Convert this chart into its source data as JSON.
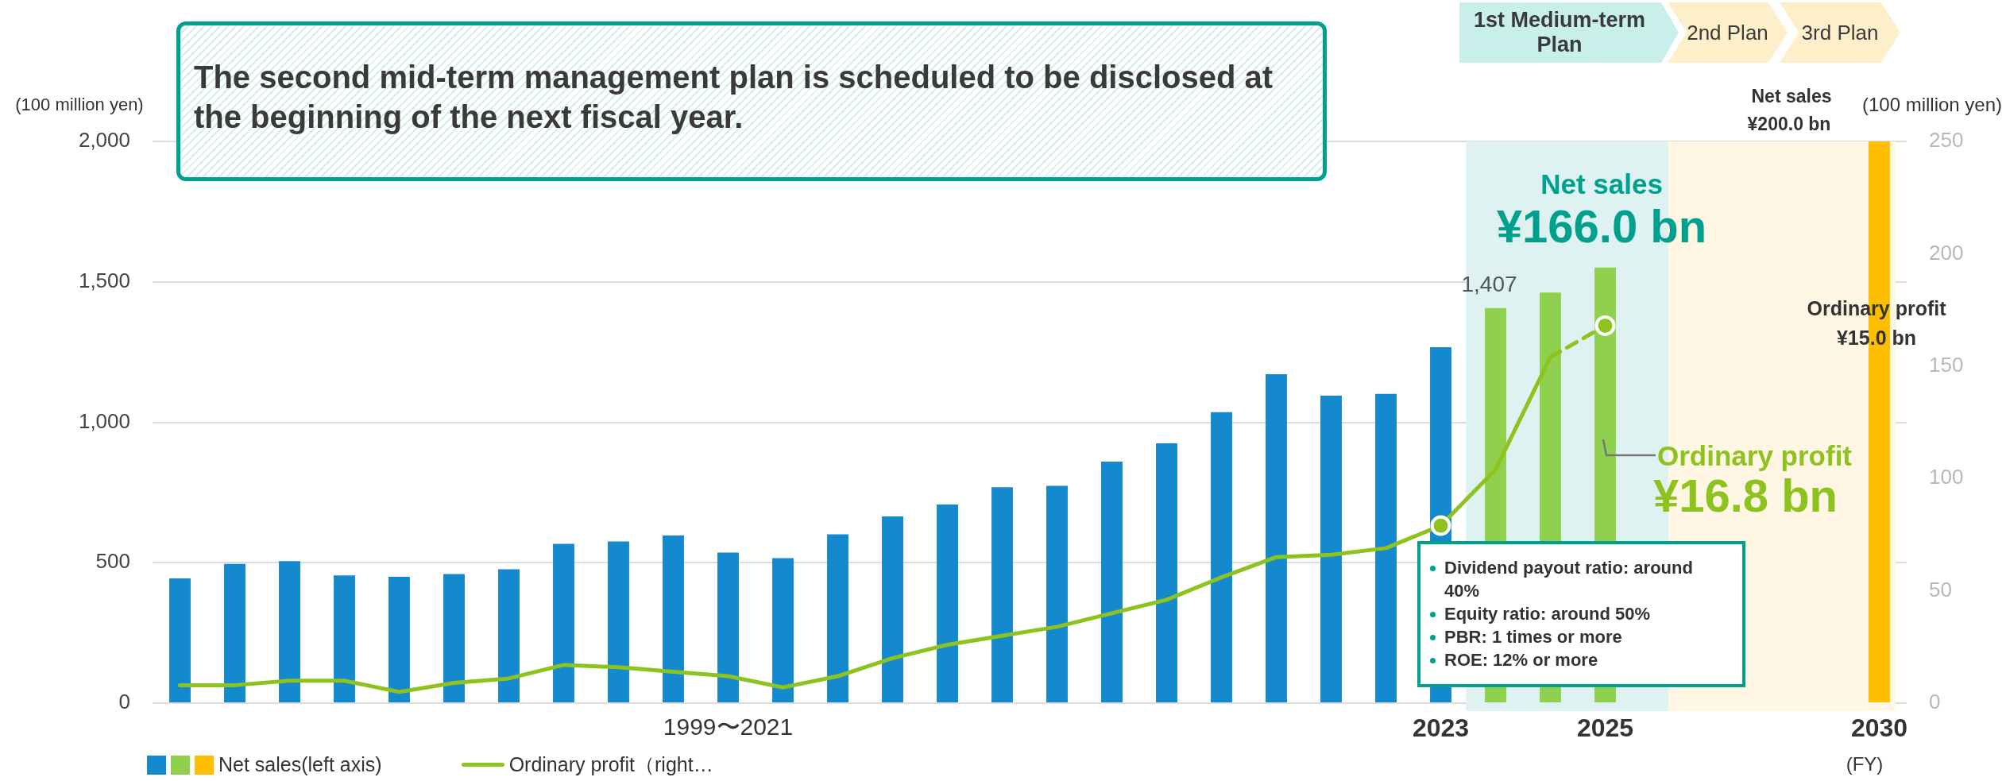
{
  "chart_data": {
    "type": "bar",
    "categories": [
      null,
      null,
      null,
      null,
      null,
      null,
      null,
      null,
      null,
      null,
      "1999〜2021",
      null,
      null,
      null,
      null,
      null,
      null,
      null,
      null,
      null,
      null,
      null,
      null,
      "2023",
      null,
      null,
      "2025",
      null,
      null,
      null,
      null,
      "2030"
    ],
    "series": [
      {
        "name": "Net sales(left axis)",
        "colors": [
          "#1589cd",
          "#1589cd",
          "#1589cd",
          "#1589cd",
          "#1589cd",
          "#1589cd",
          "#1589cd",
          "#1589cd",
          "#1589cd",
          "#1589cd",
          "#1589cd",
          "#1589cd",
          "#1589cd",
          "#1589cd",
          "#1589cd",
          "#1589cd",
          "#1589cd",
          "#1589cd",
          "#1589cd",
          "#1589cd",
          "#1589cd",
          "#1589cd",
          "#1589cd",
          "#1589cd",
          "#8fd14f",
          "#8fd14f",
          "#8fd14f",
          "#1589cd",
          "#1589cd",
          "#1589cd",
          "#1589cd",
          "#fdbf00"
        ],
        "values": [
          444,
          496,
          506,
          455,
          450,
          460,
          477,
          567,
          576,
          597,
          536,
          516,
          601,
          665,
          707,
          769,
          774,
          860,
          925,
          1036,
          1171,
          1095,
          1101,
          1267,
          1407,
          1462,
          1551,
          null,
          null,
          null,
          null,
          2000
        ],
        "value_labels": [
          null,
          null,
          null,
          null,
          null,
          null,
          null,
          null,
          null,
          null,
          null,
          null,
          null,
          null,
          null,
          null,
          null,
          null,
          null,
          null,
          null,
          null,
          null,
          null,
          "1,407",
          null,
          null,
          null,
          null,
          null,
          null,
          null
        ]
      },
      {
        "name": "Ordinary profit（right…",
        "type": "line",
        "axis": "y2",
        "color": "#8dc21f",
        "line_style": "solid",
        "marker": "none",
        "values": [
          8,
          8,
          10,
          10,
          5,
          9,
          11,
          17,
          16,
          14,
          12,
          7,
          12,
          20,
          26,
          30,
          34,
          40,
          46,
          56,
          65,
          66,
          69,
          79,
          104,
          154,
          null,
          null,
          null,
          null,
          null,
          null
        ]
      },
      {
        "type": "line",
        "axis": "y2",
        "color": "#8dc21f",
        "line_style": "dashed",
        "marker": "none",
        "values": [
          null,
          null,
          null,
          null,
          null,
          null,
          null,
          null,
          null,
          null,
          null,
          null,
          null,
          null,
          null,
          null,
          null,
          null,
          null,
          null,
          null,
          null,
          null,
          null,
          null,
          154,
          168,
          null,
          null,
          null,
          null,
          null
        ]
      },
      {
        "type": "scatter",
        "axis": "y2",
        "color": "#8dc21f",
        "marker": "circle",
        "values": [
          null,
          null,
          null,
          null,
          null,
          null,
          null,
          null,
          null,
          null,
          null,
          null,
          null,
          null,
          null,
          null,
          null,
          null,
          null,
          null,
          null,
          null,
          null,
          79,
          null,
          null,
          168,
          null,
          null,
          null,
          null,
          null
        ]
      }
    ],
    "ylim": [
      0,
      2000
    ],
    "yticks": [
      0,
      500,
      {
        "value": 1000,
        "label": "1,000"
      },
      {
        "value": 1500,
        "label": "1,500"
      },
      {
        "value": 2000,
        "label": "2,000"
      }
    ],
    "y2lim": [
      0,
      250
    ],
    "y2ticks": [
      0,
      50,
      100,
      150,
      200,
      250
    ],
    "ylabel": "(100 million yen)",
    "y2label": "(100 million yen)",
    "xlabel": "(FY)",
    "grid": "y",
    "legend": "bottom left",
    "annotations": [
      "The second mid-term management plan is scheduled to be disclosed at the beginning of the next fiscal year.",
      "1st Medium-term Plan",
      "2nd Plan",
      "3rd Plan",
      "Net sales",
      "¥166.0 bn",
      "Ordinary profit",
      "¥16.8 bn",
      "Net sales",
      "¥200.0 bn",
      "Ordinary profit",
      "¥15.0 bn",
      "Dividend payout ratio: around 40%",
      "Equity ratio: around 50%",
      "PBR: 1 times or more",
      "ROE: 12% or more"
    ]
  }
}
